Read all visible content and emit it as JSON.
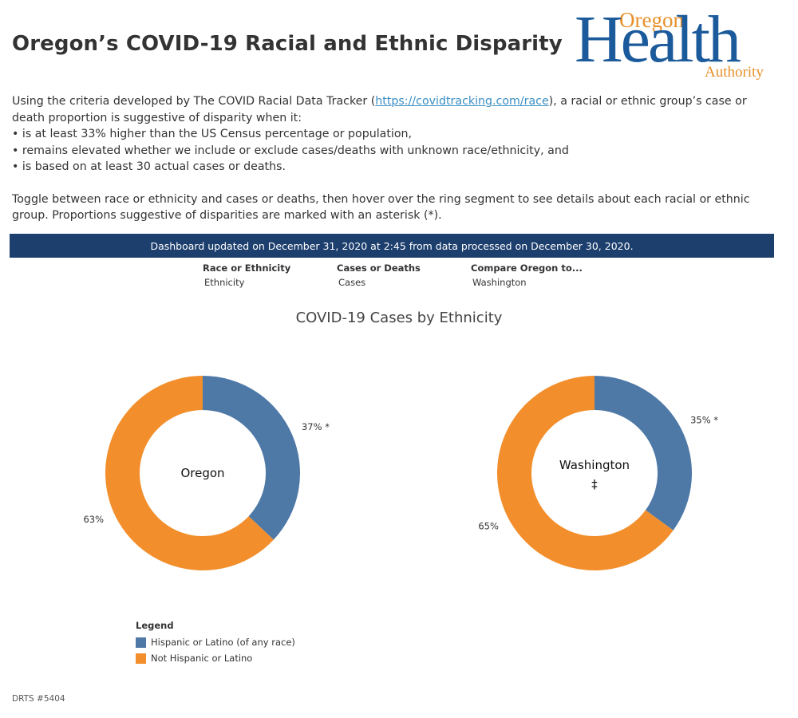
{
  "title": "Oregon’s COVID-19 Racial and Ethnic Disparity",
  "logo": {
    "word1": "Oregon",
    "word2": "Health",
    "word3": "Authority"
  },
  "intro": {
    "line1_before": "Using the criteria developed by The COVID Racial Data Tracker (",
    "line1_link": "https://covidtracking.com/race",
    "line1_after": "), a racial or ethnic group’s case or death proportion is suggestive of disparity when it:",
    "bullets": [
      "• is at least 33% higher than the US Census percentage or population,",
      "• remains elevated whether we include or exclude cases/deaths with unknown race/ethnicity, and",
      "• is based on at least 30 actual cases or deaths."
    ],
    "toggle_text": "Toggle between race or ethnicity and cases or deaths, then hover over the ring segment to see details about each racial or ethnic group. Proportions suggestive of disparities are marked with an asterisk (*)."
  },
  "banner": "Dashboard updated on December 31, 2020 at 2:45 from data processed on December 30, 2020.",
  "filters": [
    {
      "label": "Race or Ethnicity",
      "value": "Ethnicity"
    },
    {
      "label": "Cases or Deaths",
      "value": "Cases"
    },
    {
      "label": "Compare Oregon to...",
      "value": "Washington"
    }
  ],
  "chart_data": {
    "type": "pie",
    "title": "COVID-19 Cases by Ethnicity",
    "categories": [
      "Hispanic or Latino (of any race)",
      "Not Hispanic or Latino"
    ],
    "colors": [
      "#4e79a7",
      "#f28e2b"
    ],
    "series": [
      {
        "name": "Oregon",
        "subtitle": "",
        "values": [
          37,
          63
        ],
        "labels": [
          "37% *",
          "63%"
        ]
      },
      {
        "name": "Washington",
        "subtitle": "‡",
        "values": [
          35,
          65
        ],
        "labels": [
          "35% *",
          "65%"
        ]
      }
    ],
    "legend_title": "Legend"
  },
  "footer": "DRTS #5404"
}
